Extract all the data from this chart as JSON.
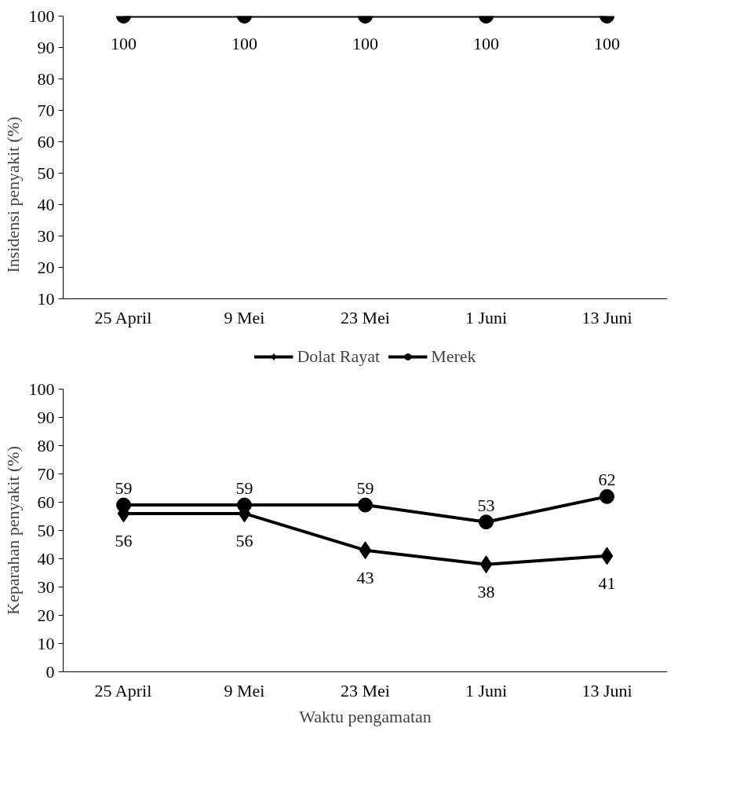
{
  "chart_data": [
    {
      "type": "line",
      "ylabel": "Insidensi penyakit (%)",
      "categories": [
        "25 April",
        "9 Mei",
        "23 Mei",
        "1 Juni",
        "13 Juni"
      ],
      "series": [
        {
          "name": "Dolat Rayat",
          "color": "#000000",
          "marker": "diamond",
          "values": [
            null,
            null,
            null,
            null,
            null
          ]
        },
        {
          "name": "Merek",
          "color": "#000000",
          "marker": "circle",
          "values": [
            100,
            100,
            100,
            100,
            100
          ]
        }
      ],
      "ylim": [
        10,
        100
      ],
      "yticks": [
        10,
        20,
        30,
        40,
        50,
        60,
        70,
        80,
        90,
        100
      ],
      "data_labels": true,
      "grid": false,
      "legend": "bottom"
    },
    {
      "type": "line",
      "ylabel": "Keparahan penyakit (%)",
      "xlabel": "Waktu pengamatan",
      "categories": [
        "25 April",
        "9 Mei",
        "23 Mei",
        "1 Juni",
        "13 Juni"
      ],
      "series": [
        {
          "color": "#000000",
          "marker": "diamond",
          "values": [
            56,
            56,
            43,
            38,
            41
          ]
        },
        {
          "color": "#000000",
          "marker": "circle",
          "values": [
            59,
            59,
            59,
            53,
            62
          ]
        }
      ],
      "ylim": [
        0,
        100
      ],
      "yticks": [
        0,
        10,
        20,
        30,
        40,
        50,
        60,
        70,
        80,
        90,
        100
      ],
      "data_labels": true,
      "grid": false,
      "legend": false
    }
  ]
}
